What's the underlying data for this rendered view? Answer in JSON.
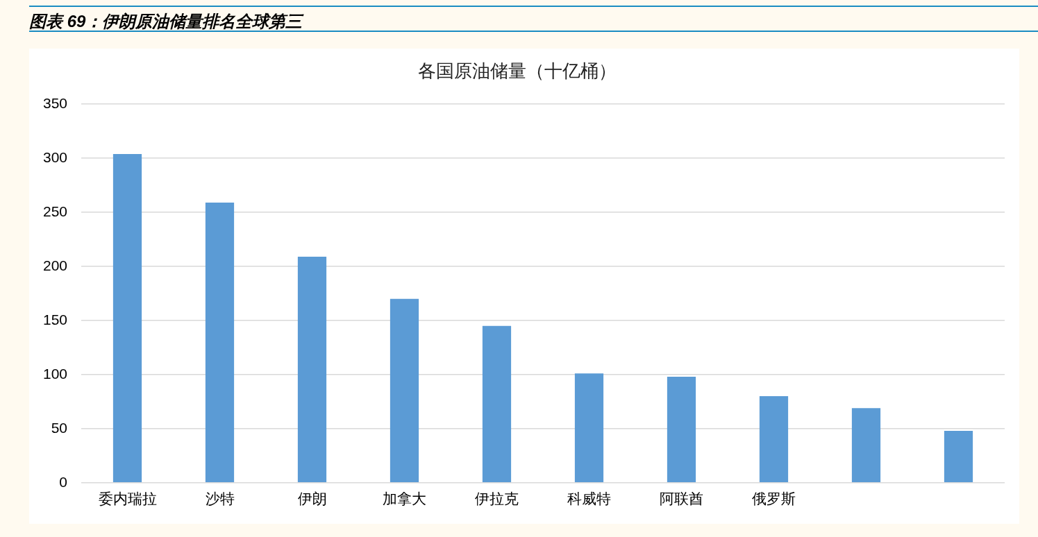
{
  "chart_data": {
    "type": "bar",
    "title": "图表 69：伊朗原油储量排名全球第三",
    "subtitle": "各国原油储量（十亿桶）",
    "categories": [
      "委内瑞拉",
      "沙特",
      "伊朗",
      "加拿大",
      "伊拉克",
      "科威特",
      "阿联酋",
      "俄罗斯",
      null,
      null
    ],
    "values": [
      304,
      259,
      209,
      170,
      145,
      101,
      98,
      80,
      69,
      48
    ],
    "color": "#5b9bd5",
    "ylim": [
      0,
      350
    ],
    "yticks": [
      0,
      50,
      100,
      150,
      200,
      250,
      300,
      350
    ],
    "grid": "y"
  }
}
